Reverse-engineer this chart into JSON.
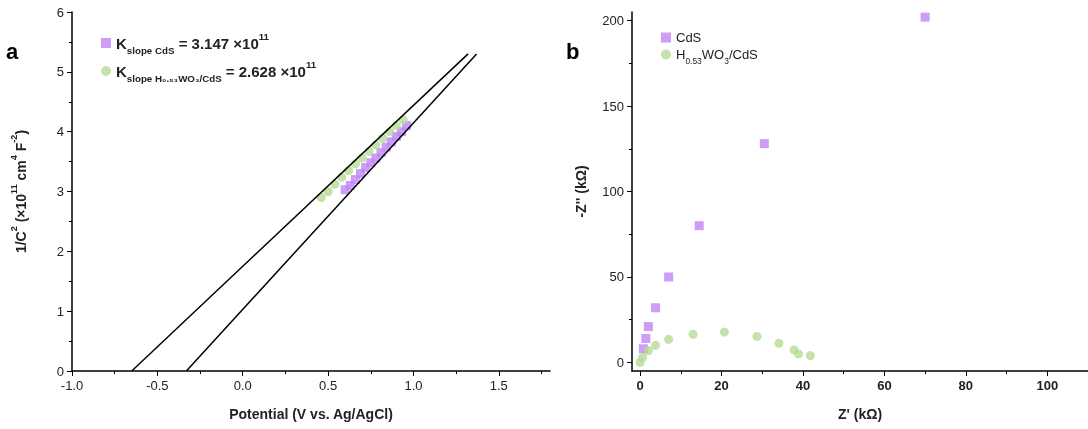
{
  "chart_data": [
    {
      "type": "scatter",
      "annotations": [
        "a"
      ],
      "xlabel": "Potential (V vs. Ag/AgCl)",
      "ylabel": "1/C$^{2}$ (×10$^{11}$ cm$^{4}$ F$^{-2}$)",
      "xlim": [
        -1,
        1.8
      ],
      "xticks": [
        {
          "value": -1,
          "label": "-1.0"
        },
        {
          "value": -0.5,
          "label": "-0.5"
        },
        {
          "value": 0,
          "label": "0.0"
        },
        {
          "value": 0.5,
          "label": "0.5"
        },
        {
          "value": 1,
          "label": "1.0"
        },
        {
          "value": 1.5,
          "label": "1.5"
        }
      ],
      "ylim": [
        0,
        6
      ],
      "yticks": [
        0,
        1,
        2,
        3,
        4,
        5,
        6
      ],
      "grid": false,
      "legend": "top left",
      "series": [
        {
          "name": "K$_{slope CdS}$ = 3.147 ×10$^{11}$",
          "color": "#c084f5",
          "marker": "square",
          "x": [
            0.6,
            0.63,
            0.66,
            0.69,
            0.72,
            0.75,
            0.78,
            0.81,
            0.84,
            0.87,
            0.9,
            0.93,
            0.96
          ],
          "values": [
            3.03,
            3.1,
            3.2,
            3.3,
            3.4,
            3.48,
            3.56,
            3.65,
            3.74,
            3.83,
            3.92,
            4.0,
            4.1
          ]
        },
        {
          "name": "K$_{slope H₀.₅₃WO₃/CdS}$ = 2.628 ×10$^{11}$",
          "color": "#b5db95",
          "marker": "circle",
          "x": [
            0.46,
            0.5,
            0.54,
            0.58,
            0.62,
            0.66,
            0.7,
            0.74,
            0.78,
            0.82,
            0.86,
            0.9,
            0.94
          ],
          "values": [
            2.9,
            3.0,
            3.12,
            3.24,
            3.35,
            3.46,
            3.56,
            3.67,
            3.78,
            3.89,
            4.0,
            4.1,
            4.2
          ]
        },
        {
          "type": "line",
          "color": "#000000",
          "marker": "none",
          "x": [
            -0.33,
            1.37
          ],
          "values": [
            0,
            5.3
          ]
        },
        {
          "type": "line",
          "color": "#000000",
          "marker": "none",
          "x": [
            -0.65,
            1.32
          ],
          "values": [
            0,
            5.3
          ]
        }
      ]
    },
    {
      "type": "scatter",
      "annotations": [
        "b"
      ],
      "xlabel": "Z' (kΩ)",
      "ylabel": "-Z'' (kΩ)",
      "xlim": [
        -2,
        110
      ],
      "xticks": [
        0,
        20,
        40,
        60,
        80,
        100
      ],
      "ylim": [
        -5,
        205
      ],
      "yticks": [
        0,
        50,
        100,
        150,
        200
      ],
      "grid": false,
      "legend": "top left",
      "series": [
        {
          "name": "CdS",
          "color": "#c084f5",
          "marker": "square",
          "x": [
            0.8,
            1.4,
            2,
            3.8,
            7,
            14.5,
            30.5,
            70
          ],
          "values": [
            8,
            14,
            21,
            32,
            50,
            80,
            128,
            202
          ]
        },
        {
          "name": "H$_{0.53}$WO$_{3}$/CdS",
          "color": "#b5db95",
          "marker": "circle",
          "x": [
            0,
            0.6,
            2,
            3.8,
            7,
            13,
            20.7,
            28.7,
            34.1,
            37.8,
            38.9,
            41.8
          ],
          "values": [
            0,
            3,
            7,
            10,
            13.5,
            16.5,
            17.8,
            15.2,
            11.2,
            7.3,
            5,
            4
          ]
        }
      ]
    }
  ]
}
